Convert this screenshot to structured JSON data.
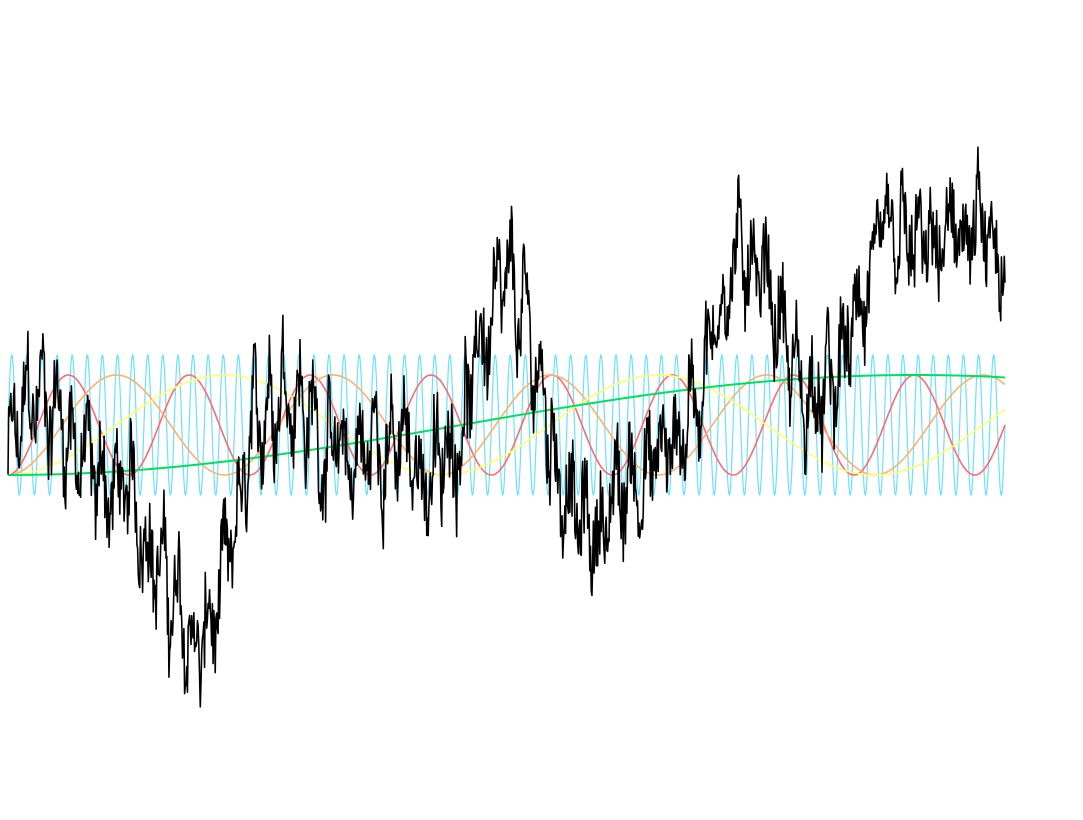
{
  "chart_data": {
    "type": "line",
    "description_free": true,
    "x_range": [
      0,
      1
    ],
    "y_range": [
      -1,
      1
    ],
    "grid": false,
    "legend": "none",
    "series": [
      {
        "kind": "sine",
        "color": "#ff6a6a",
        "cycles": 8.25,
        "amplitude": 1.0,
        "phase_deg": -90
      },
      {
        "kind": "sine",
        "color": "#ffb06a",
        "cycles": 4.6,
        "amplitude": 1.0,
        "phase_deg": -90
      },
      {
        "kind": "sine",
        "color": "#ffff6a",
        "cycles": 2.3,
        "amplitude": 1.0,
        "phase_deg": -90
      },
      {
        "kind": "sine",
        "color": "#00e060",
        "cycles": 0.55,
        "amplitude": 1.0,
        "phase_deg": -90
      },
      {
        "kind": "sine",
        "color": "#6ae0ff",
        "cycles": 66,
        "amplitude": 1.4,
        "phase_deg": 0
      },
      {
        "kind": "composite",
        "color": "#000000",
        "trend_start": -0.2,
        "trend_end": 2.3,
        "roughness": 0.6
      }
    ]
  }
}
